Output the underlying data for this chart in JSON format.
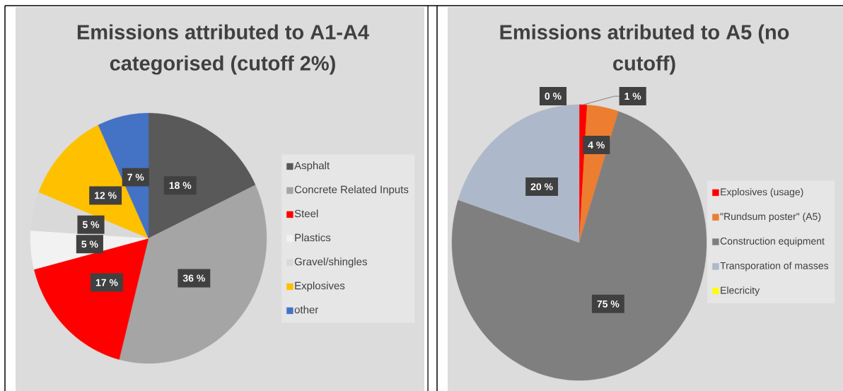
{
  "chart_data": [
    {
      "type": "pie",
      "title": "Emissions attributed to A1-A4 categorised (cutoff 2%)",
      "categories": [
        "Asphalt",
        "Concrete Related Inputs",
        "Steel",
        "Plastics",
        "Gravel/shingles",
        "Explosives",
        "other"
      ],
      "values": [
        18,
        36,
        17,
        5,
        5,
        12,
        7
      ],
      "colors": [
        "#595959",
        "#a5a5a5",
        "#ff0000",
        "#f2f2f2",
        "#d9d9d9",
        "#ffc000",
        "#4472c4"
      ],
      "value_labels": [
        "18 %",
        "36 %",
        "17 %",
        "5 %",
        "5 %",
        "12 %",
        "7 %"
      ],
      "legend": "right"
    },
    {
      "type": "pie",
      "title": "Emissions atributed to A5 (no cutoff)",
      "categories": [
        "Explosives (usage)",
        "\"Rundsum poster\" (A5)",
        "Construction equipment",
        "Transporation of masses",
        "Elecricity"
      ],
      "values": [
        1,
        4,
        75,
        20,
        0
      ],
      "colors": [
        "#ff0000",
        "#ed7d31",
        "#7f7f7f",
        "#adb9ca",
        "#ffff00"
      ],
      "value_labels": [
        "1 %",
        "4 %",
        "75 %",
        "20 %",
        "0 %"
      ],
      "legend": "right"
    }
  ]
}
